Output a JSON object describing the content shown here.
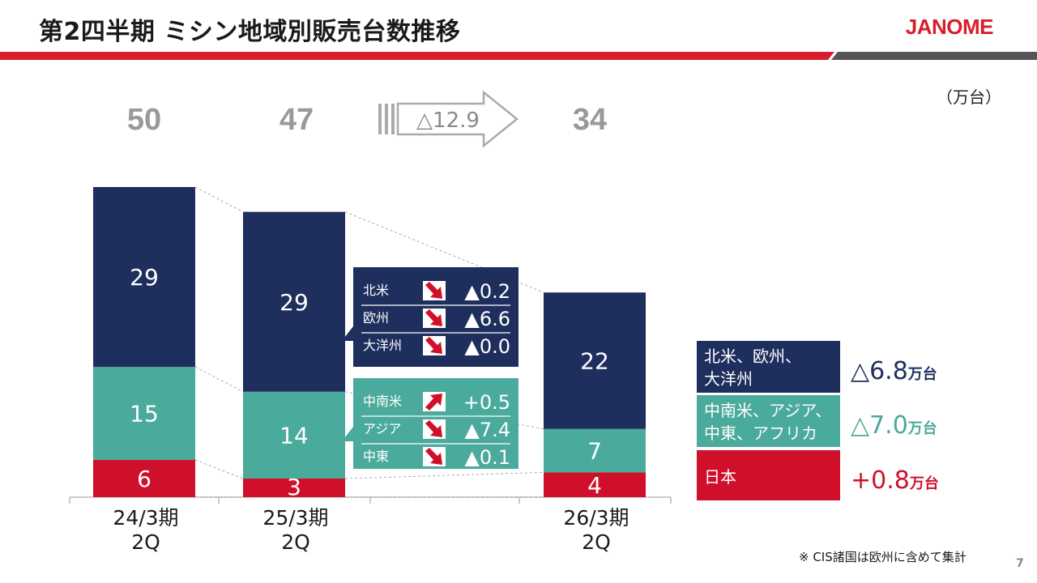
{
  "title": "第2四半期 ミシン地域別販売台数推移",
  "logo": "JANOME",
  "unit": "（万台）",
  "page_number": "7",
  "footnote": "※ CIS諸国は欧州に含めて集計",
  "colors": {
    "navy": "#1e2f5e",
    "teal": "#4aaa9b",
    "red": "#d0102a",
    "header_red": "#d81e2d",
    "header_gray": "#555555",
    "total_gray": "#999999"
  },
  "change_arrow_label": "△12.9",
  "chart_data": {
    "type": "bar",
    "stacked": true,
    "categories": [
      "24/3期\n2Q",
      "25/3期\n2Q",
      "26/3期\n2Q"
    ],
    "category_lines": [
      [
        "24/3期",
        "2Q"
      ],
      [
        "25/3期",
        "2Q"
      ],
      [
        "26/3期",
        "2Q"
      ]
    ],
    "totals": [
      "50",
      "47",
      "34"
    ],
    "series": [
      {
        "name": "日本",
        "values": [
          6,
          3,
          4
        ],
        "color": "#d0102a"
      },
      {
        "name": "中南米、アジア、中東、アフリカ",
        "values": [
          15,
          14,
          7
        ],
        "color": "#4aaa9b"
      },
      {
        "name": "北米、欧州、大洋州",
        "values": [
          29,
          29,
          22
        ],
        "color": "#1e2f5e"
      }
    ],
    "ylim": [
      0,
      50
    ]
  },
  "detail_boxes": [
    {
      "color": "#1e2f5e",
      "rows": [
        {
          "label": "北米",
          "direction": "down",
          "value": "▲0.2"
        },
        {
          "label": "欧州",
          "direction": "down",
          "value": "▲6.6"
        },
        {
          "label": "大洋州",
          "direction": "down",
          "value": "▲0.0"
        }
      ]
    },
    {
      "color": "#4aaa9b",
      "rows": [
        {
          "label": "中南米",
          "direction": "up",
          "value": "+0.5"
        },
        {
          "label": "アジア",
          "direction": "down",
          "value": "▲7.4"
        },
        {
          "label": "中東",
          "direction": "down",
          "value": "▲0.1"
        }
      ]
    }
  ],
  "legend": [
    {
      "lines": [
        "北米、欧州、",
        "大洋州"
      ],
      "color": "#1e2f5e",
      "change": "△6.8",
      "unit": "万台",
      "change_color": "#1e2f5e"
    },
    {
      "lines": [
        "中南米、アジア、",
        "中東、アフリカ"
      ],
      "color": "#4aaa9b",
      "change": "△7.0",
      "unit": "万台",
      "change_color": "#4aaa9b"
    },
    {
      "lines": [
        "日本"
      ],
      "color": "#d0102a",
      "change": "+0.8",
      "unit": "万台",
      "change_color": "#d0102a"
    }
  ]
}
